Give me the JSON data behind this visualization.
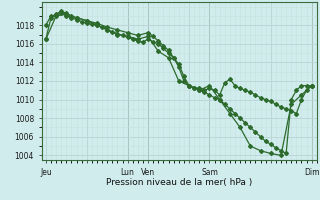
{
  "background_color": "#d0eced",
  "grid_major_color": "#b8d4d4",
  "grid_minor_color": "#c8e0e0",
  "line_color": "#2d6b2d",
  "xlabel": "Pression niveau de la mer( hPa )",
  "ylim": [
    1003.5,
    1020.5
  ],
  "yticks": [
    1004,
    1006,
    1008,
    1010,
    1012,
    1014,
    1016,
    1018
  ],
  "xtick_labels": [
    "Jeu",
    "",
    "Lun",
    "Ven",
    "",
    "Sam",
    "",
    "Dim"
  ],
  "xtick_positions": [
    0,
    48,
    96,
    120,
    168,
    192,
    264,
    312
  ],
  "xlim": [
    -5,
    318
  ],
  "line1_x": [
    0,
    6,
    12,
    18,
    24,
    30,
    36,
    42,
    48,
    54,
    60,
    66,
    72,
    78,
    84,
    90,
    96,
    102,
    108,
    114,
    120,
    126,
    132,
    138,
    144,
    150,
    156,
    162,
    168,
    174,
    180,
    186,
    192,
    198,
    204,
    210,
    216,
    222,
    228,
    234,
    240,
    246,
    252,
    258,
    264,
    270,
    276,
    282,
    288,
    294,
    300,
    306,
    312
  ],
  "line1_y": [
    1018.0,
    1019.0,
    1019.1,
    1019.3,
    1019.0,
    1018.8,
    1018.6,
    1018.4,
    1018.2,
    1018.1,
    1018.0,
    1017.8,
    1017.5,
    1017.3,
    1017.1,
    1016.9,
    1016.7,
    1016.5,
    1016.3,
    1016.2,
    1016.5,
    1016.2,
    1016.0,
    1015.5,
    1015.0,
    1014.5,
    1013.5,
    1012.0,
    1011.5,
    1011.2,
    1011.0,
    1010.8,
    1010.5,
    1010.2,
    1010.0,
    1009.5,
    1009.0,
    1008.5,
    1008.0,
    1007.5,
    1007.0,
    1006.5,
    1006.0,
    1005.5,
    1005.2,
    1004.8,
    1004.5,
    1004.2,
    1010.0,
    1011.0,
    1011.5,
    1011.5,
    1011.5
  ],
  "line2_x": [
    0,
    6,
    12,
    18,
    24,
    30,
    36,
    48,
    60,
    72,
    84,
    96,
    108,
    120,
    126,
    132,
    138,
    144,
    150,
    156,
    162,
    168,
    174,
    180,
    186,
    192,
    198,
    204,
    210,
    216,
    222,
    228,
    234,
    240,
    246,
    252,
    258,
    264,
    270,
    276,
    282,
    288,
    294,
    300,
    306,
    312
  ],
  "line2_y": [
    1016.5,
    1018.8,
    1019.2,
    1019.5,
    1019.3,
    1019.0,
    1018.8,
    1018.5,
    1018.2,
    1017.8,
    1017.5,
    1017.2,
    1016.9,
    1017.2,
    1016.8,
    1016.3,
    1015.8,
    1015.3,
    1014.5,
    1013.8,
    1012.5,
    1011.5,
    1011.3,
    1011.2,
    1011.0,
    1011.2,
    1011.0,
    1010.5,
    1011.8,
    1012.2,
    1011.5,
    1011.2,
    1011.0,
    1010.8,
    1010.5,
    1010.2,
    1010.0,
    1009.8,
    1009.5,
    1009.2,
    1009.0,
    1008.8,
    1008.5,
    1010.0,
    1011.0,
    1011.5
  ],
  "line3_x": [
    0,
    12,
    24,
    36,
    48,
    60,
    72,
    84,
    96,
    108,
    120,
    132,
    144,
    156,
    168,
    180,
    192,
    204,
    216,
    228,
    240,
    252,
    264,
    276,
    288,
    300,
    312
  ],
  "line3_y": [
    1016.5,
    1019.0,
    1019.2,
    1018.8,
    1018.5,
    1018.0,
    1017.5,
    1017.0,
    1016.8,
    1016.5,
    1016.8,
    1015.2,
    1014.5,
    1012.0,
    1011.5,
    1011.0,
    1011.5,
    1010.0,
    1008.5,
    1007.0,
    1005.0,
    1004.5,
    1004.2,
    1004.0,
    1009.5,
    1010.5,
    1011.5
  ]
}
